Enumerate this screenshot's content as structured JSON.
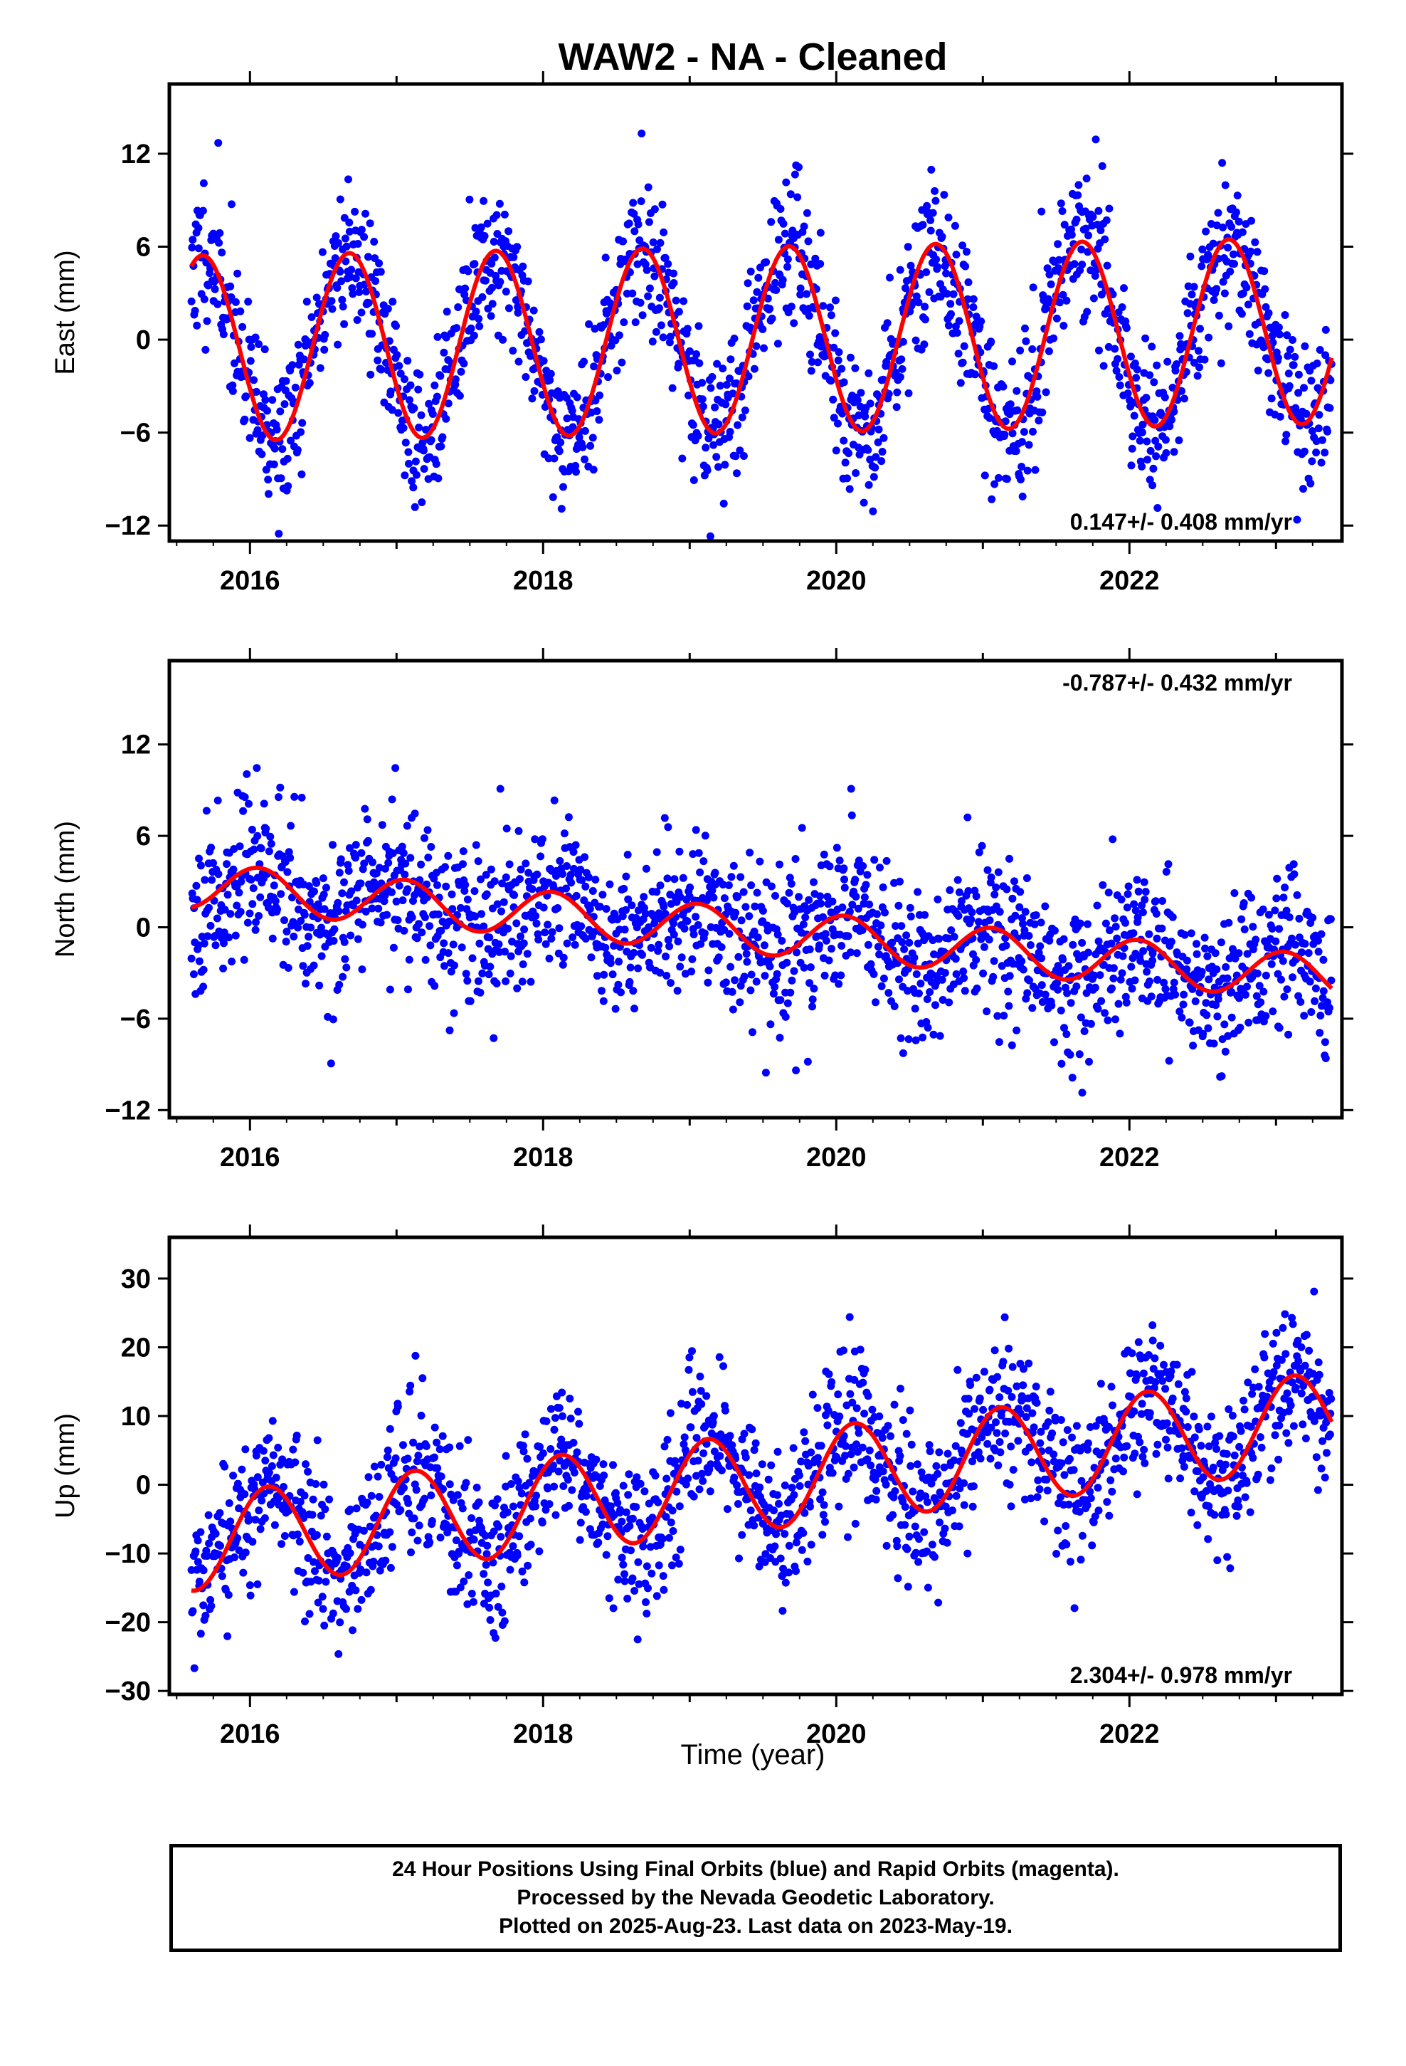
{
  "title": "WAW2  - NA - Cleaned",
  "xlabel": "Time (year)",
  "footer": {
    "line1": "24 Hour Positions Using Final Orbits (blue) and Rapid Orbits (magenta).",
    "line2": "Processed by the Nevada Geodetic Laboratory.",
    "line3": "Plotted on 2025-Aug-23. Last data on 2023-May-19."
  },
  "colors": {
    "points": "#0000ff",
    "fit": "#ff0000",
    "axes": "#000000"
  },
  "chart_data": [
    {
      "type": "scatter",
      "title": "WAW2  - NA - Cleaned",
      "xlabel": "",
      "ylabel": "East (mm)",
      "xlim": [
        2015.45,
        2023.45
      ],
      "ylim": [
        -13,
        16.5
      ],
      "yticks": [
        -12,
        -6,
        0,
        6,
        12
      ],
      "xticks": [
        2016,
        2018,
        2020,
        2022
      ],
      "rate": "0.147+/- 0.408 mm/yr",
      "rate_position": "bottom-right",
      "data_range": [
        2015.6,
        2023.38
      ],
      "fit": {
        "amplitude": 6.0,
        "trend": 0.147,
        "phase": 3.6,
        "offset": 0.0
      },
      "scatter": {
        "count": 1700,
        "sigma": 2.4,
        "seed": 11
      },
      "grid": false
    },
    {
      "type": "scatter",
      "xlabel": "",
      "ylabel": "North (mm)",
      "xlim": [
        2015.45,
        2023.45
      ],
      "ylim": [
        -12.5,
        17.5
      ],
      "yticks": [
        -12,
        -6,
        0,
        6,
        12
      ],
      "xticks": [
        2016,
        2018,
        2020,
        2022
      ],
      "rate": "-0.787+/- 0.432 mm/yr",
      "rate_position": "top-right",
      "data_range": [
        2015.6,
        2023.38
      ],
      "fit": {
        "amplitude": 1.5,
        "trend": -0.787,
        "phase": 1.2,
        "offset": -0.3
      },
      "scatter": {
        "count": 1700,
        "sigma": 2.6,
        "seed": 23
      },
      "grid": false
    },
    {
      "type": "scatter",
      "xlabel": "Time (year)",
      "ylabel": "Up (mm)",
      "xlim": [
        2015.45,
        2023.45
      ],
      "ylim": [
        -30.5,
        36
      ],
      "yticks": [
        -30,
        -20,
        -10,
        0,
        10,
        20,
        30
      ],
      "xticks": [
        2016,
        2018,
        2020,
        2022
      ],
      "rate": "2.304+/- 0.978 mm/yr",
      "rate_position": "bottom-right",
      "data_range": [
        2015.6,
        2023.38
      ],
      "fit": {
        "amplitude": 7.0,
        "trend": 2.304,
        "phase": 0.8,
        "offset": 0.5
      },
      "scatter": {
        "count": 1700,
        "sigma": 5.5,
        "seed": 37
      },
      "grid": false
    }
  ]
}
